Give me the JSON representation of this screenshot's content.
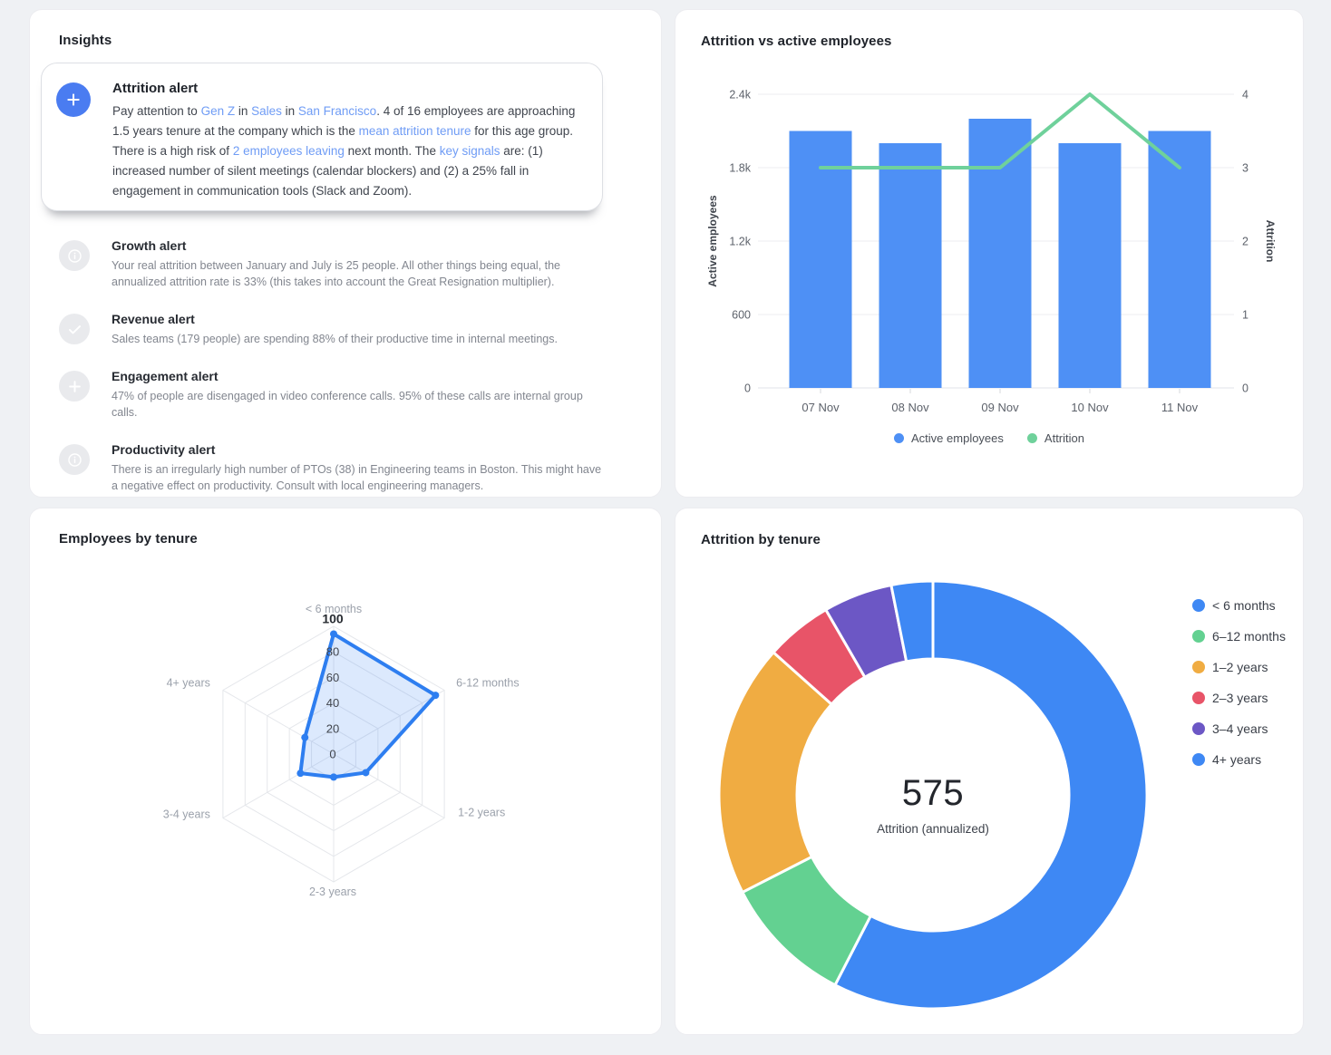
{
  "theme": {
    "page_bg": "#eff1f4",
    "card_bg": "#ffffff",
    "accent_blue": "#4a8df5",
    "green": "#68cf96",
    "orange": "#f0ac42",
    "red": "#e85468",
    "purple": "#6c57c5",
    "link_color": "#6f9cf5"
  },
  "insights": {
    "title": "Insights",
    "featured": {
      "icon": "plus",
      "title": "Attrition alert",
      "segments": [
        {
          "text": "Pay attention to "
        },
        {
          "text": "Gen Z",
          "link": true
        },
        {
          "text": " in "
        },
        {
          "text": "Sales",
          "link": true
        },
        {
          "text": " in "
        },
        {
          "text": "San Francisco",
          "link": true
        },
        {
          "text": ". 4 of 16 employees are approaching 1.5 years tenure at the company which is the "
        },
        {
          "text": "mean attrition tenure",
          "link": true
        },
        {
          "text": " for this age group. There is a high risk of "
        },
        {
          "text": "2 employees leaving",
          "link": true
        },
        {
          "text": " next month. The "
        },
        {
          "text": "key signals",
          "link": true
        },
        {
          "text": " are: (1) increased number of silent meetings (calendar blockers) and (2) a 25% fall in engagement in communication tools (Slack and Zoom)."
        }
      ]
    },
    "alerts": [
      {
        "icon": "info",
        "title": "Growth alert",
        "body": "Your real attrition between January and July is 25 people. All other things being equal, the annualized attrition rate is 33% (this takes into account the Great Resignation multiplier)."
      },
      {
        "icon": "check",
        "title": "Revenue alert",
        "body": "Sales teams (179 people) are spending 88% of their productive time in internal meetings."
      },
      {
        "icon": "plus",
        "title": "Engagement alert",
        "body": "47% of people are disengaged in video conference calls. 95% of these calls are internal group calls."
      },
      {
        "icon": "info",
        "title": "Productivity alert",
        "body": "There is an irregularly high number of PTOs (38) in Engineering teams in Boston. This might have a negative effect on productivity. Consult with local engineering managers."
      }
    ]
  },
  "chart_data": [
    {
      "id": "attrition-vs-active-employees",
      "type": "bar",
      "title": "Attrition vs active employees",
      "categories": [
        "07 Nov",
        "08 Nov",
        "09 Nov",
        "10 Nov",
        "11 Nov"
      ],
      "series": [
        {
          "name": "Active employees",
          "type": "bar",
          "axis": "left",
          "color": "#4e90f5",
          "values": [
            2100,
            2000,
            2200,
            2000,
            2100
          ]
        },
        {
          "name": "Attrition",
          "type": "line",
          "axis": "right",
          "color": "#6fd19b",
          "values": [
            3,
            3,
            3,
            4,
            3
          ]
        }
      ],
      "left_axis": {
        "label": "Active employees",
        "min": 0,
        "max": 2400,
        "ticks": [
          "0",
          "600",
          "1.2k",
          "1.8k",
          "2.4k"
        ]
      },
      "right_axis": {
        "label": "Attrition",
        "min": 0,
        "max": 4,
        "ticks": [
          "0",
          "1",
          "2",
          "3",
          "4"
        ]
      },
      "legend": [
        "Active employees",
        "Attrition"
      ],
      "legend_position": "bottom",
      "grid": true
    },
    {
      "id": "employees-by-tenure",
      "type": "radar",
      "title": "Employees by tenure",
      "axes": [
        "< 6 months",
        "6-12 months",
        "1-2 years",
        "2-3 years",
        "3-4 years",
        "4+ years"
      ],
      "values": [
        94,
        92,
        29,
        18,
        30,
        26
      ],
      "ring_ticks": [
        0,
        20,
        40,
        60,
        80,
        100
      ],
      "max": 100,
      "stroke": "#2e7ef0",
      "fill": "rgba(78,144,245,0.20)",
      "grid": true
    },
    {
      "id": "attrition-by-tenure",
      "type": "pie",
      "title": "Attrition by tenure",
      "center_value": "575",
      "center_label": "Attrition (annualized)",
      "total": 575,
      "slices": [
        {
          "label": "< 6 months",
          "value": 331,
          "color": "#3e88f4"
        },
        {
          "label": "6–12 months",
          "value": 57,
          "color": "#63d191"
        },
        {
          "label": "1–2 years",
          "value": 110,
          "color": "#f0ac42"
        },
        {
          "label": "2–3 years",
          "value": 29,
          "color": "#e85468"
        },
        {
          "label": "3–4 years",
          "value": 30,
          "color": "#6c57c5"
        },
        {
          "label": "4+ years",
          "value": 18,
          "color": "#3e88f4"
        }
      ],
      "legend_position": "right"
    }
  ]
}
